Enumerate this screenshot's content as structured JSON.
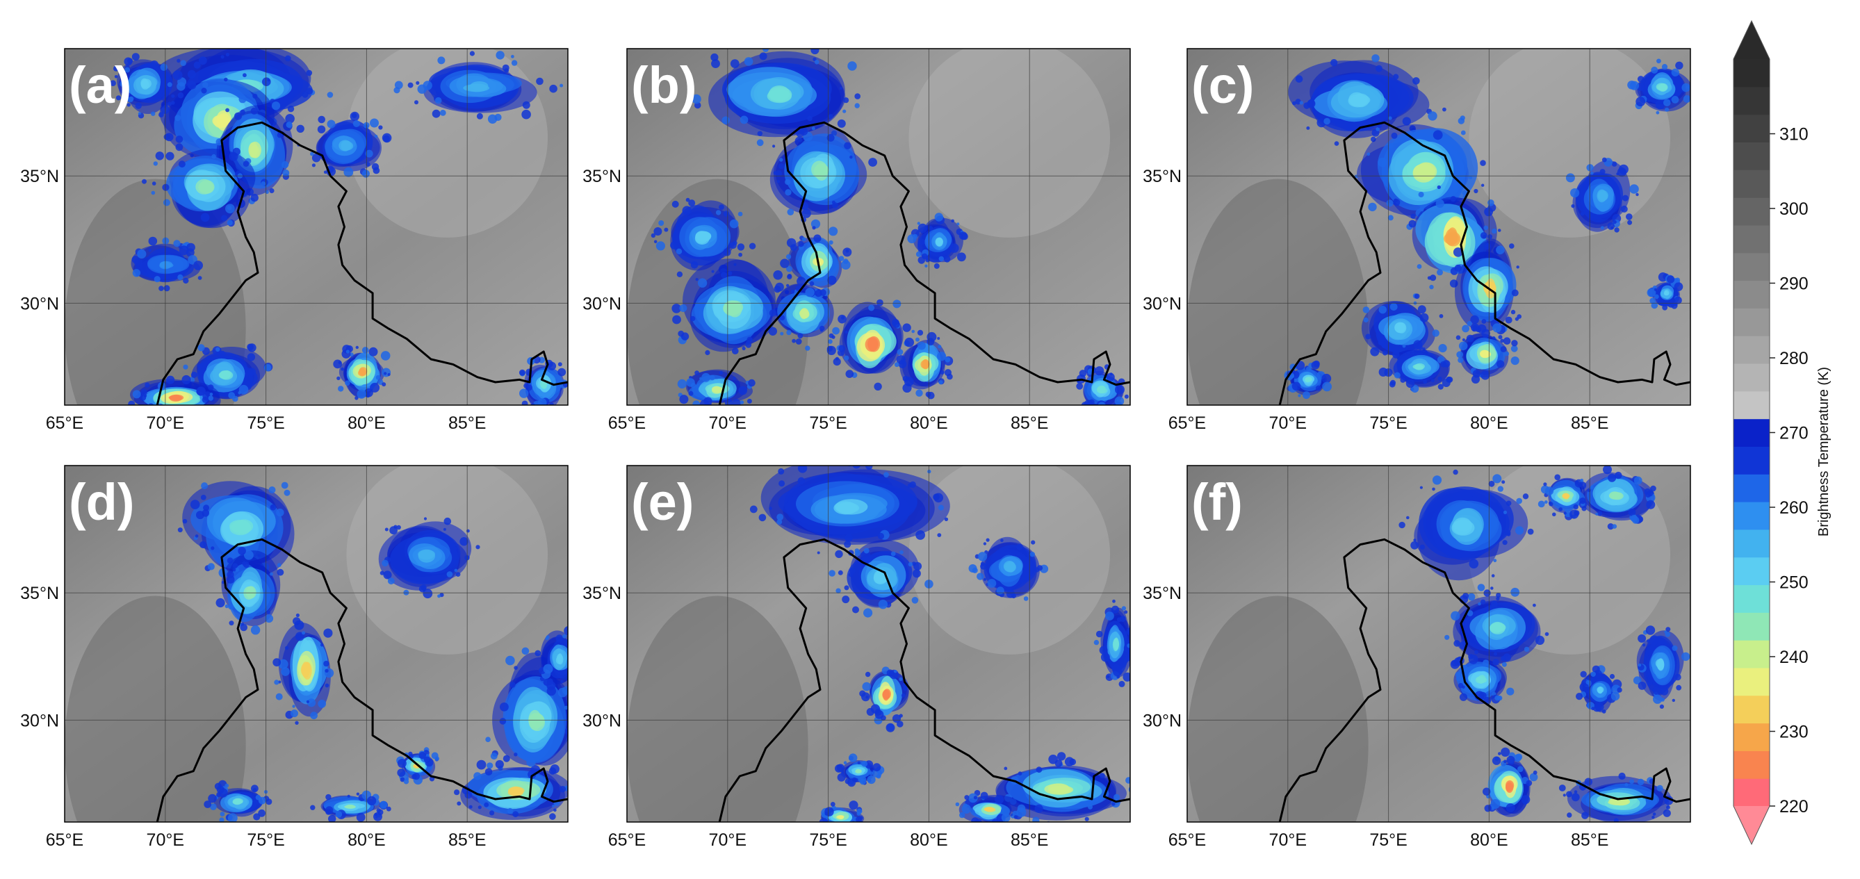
{
  "panels": [
    {
      "id": "a",
      "label": "(a)"
    },
    {
      "id": "b",
      "label": "(b)"
    },
    {
      "id": "c",
      "label": "(c)"
    },
    {
      "id": "d",
      "label": "(d)"
    },
    {
      "id": "e",
      "label": "(e)"
    },
    {
      "id": "f",
      "label": "(f)"
    }
  ],
  "axes": {
    "lon_range": [
      65,
      90
    ],
    "lat_range": [
      26,
      40
    ],
    "lon_ticks": [
      65,
      70,
      75,
      80,
      85
    ],
    "lon_tick_labels": [
      "65°E",
      "70°E",
      "75°E",
      "80°E",
      "85°E"
    ],
    "lat_ticks": [
      30,
      35
    ],
    "lat_tick_labels": [
      "30°N",
      "35°N"
    ],
    "gridlines": true
  },
  "colorbar": {
    "label": "Brightness Temperature (K)",
    "tick_labels": [
      "220",
      "230",
      "240",
      "250",
      "260",
      "270",
      "280",
      "290",
      "300",
      "310"
    ],
    "range": [
      220,
      310
    ],
    "extend": "both",
    "colors": [
      "#ff6a78",
      "#f9844f",
      "#f6a64a",
      "#f4cf5a",
      "#eaf07e",
      "#c8ef8c",
      "#8fe7b6",
      "#6ee0d8",
      "#5bcdf2",
      "#42b2ef",
      "#2e8ff0",
      "#1e66e8",
      "#1035d6",
      "#0a22c9",
      "#c4c4c4",
      "#b4b4b4",
      "#a6a6a6",
      "#989898",
      "#8b8b8b",
      "#7e7e7e",
      "#717171",
      "#656565",
      "#595959",
      "#4d4d4d",
      "#414141",
      "#363636",
      "#2c2c2c"
    ],
    "top_extend_color": "#2a2a2a",
    "bottom_extend_color": "#ff8a96"
  },
  "map_colors": {
    "background_dark": "#6e6e6e",
    "background_light": "#a9a9a9",
    "border_line": "#000000",
    "grid_line": "#3c3c3c"
  }
}
